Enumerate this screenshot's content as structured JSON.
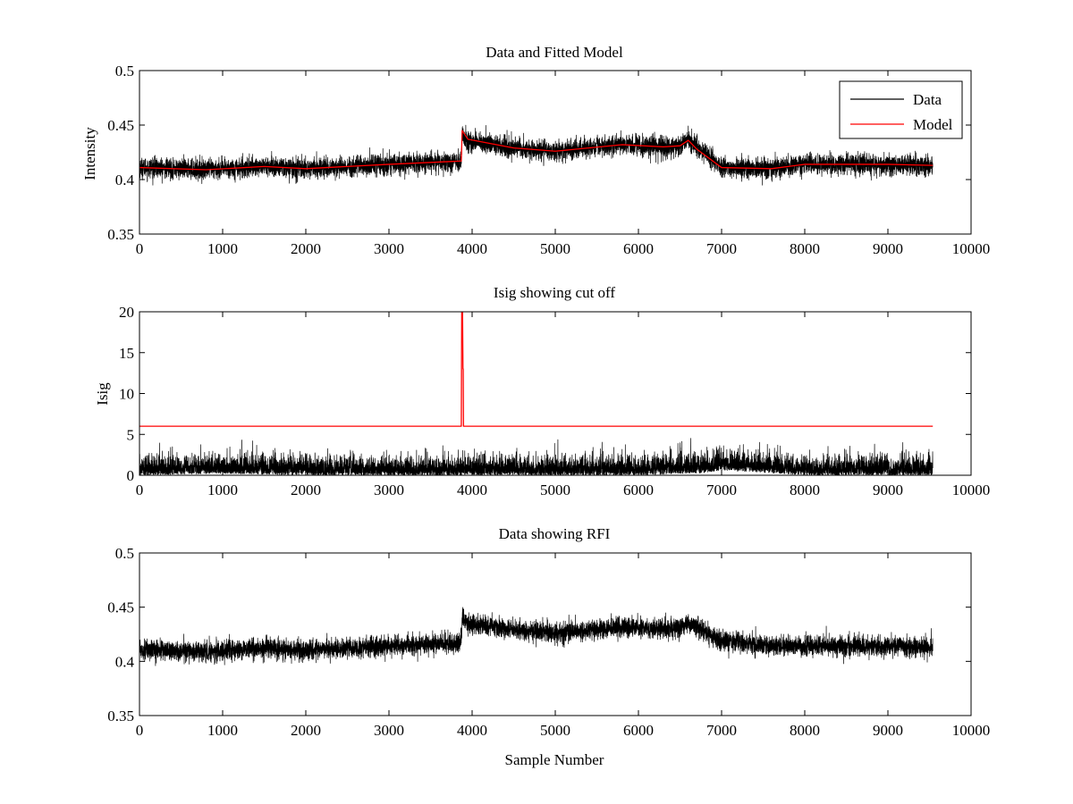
{
  "chart_data": [
    {
      "type": "line",
      "title": "Data and Fitted Model",
      "xlabel": "",
      "ylabel": "Intensity",
      "xlim": [
        0,
        10000
      ],
      "ylim": [
        0.35,
        0.5
      ],
      "xticks": [
        "0",
        "1000",
        "2000",
        "3000",
        "4000",
        "5000",
        "6000",
        "7000",
        "8000",
        "9000",
        "10000"
      ],
      "yticks": [
        "0.35",
        "0.4",
        "0.45",
        "0.5"
      ],
      "legend": {
        "placement": "top-right",
        "entries": [
          "Data",
          "Model"
        ]
      },
      "series": [
        {
          "name": "Data",
          "color": "#000000",
          "noisy": true,
          "noise_amplitude": 0.0045,
          "x": [
            0,
            800,
            1500,
            2000,
            3000,
            3870,
            3880,
            3950,
            4500,
            5000,
            5800,
            6300,
            6500,
            6600,
            6700,
            7000,
            7600,
            8000,
            9000,
            9540
          ],
          "y": [
            0.411,
            0.409,
            0.412,
            0.41,
            0.414,
            0.417,
            0.441,
            0.435,
            0.429,
            0.426,
            0.432,
            0.43,
            0.431,
            0.436,
            0.431,
            0.411,
            0.41,
            0.414,
            0.414,
            0.413
          ]
        },
        {
          "name": "Model",
          "color": "#ff0000",
          "noisy": false,
          "x": [
            0,
            800,
            1500,
            2000,
            3000,
            3870,
            3880,
            3950,
            4500,
            5000,
            5800,
            6300,
            6500,
            6600,
            6700,
            7000,
            7600,
            8000,
            9000,
            9540
          ],
          "y": [
            0.411,
            0.409,
            0.412,
            0.41,
            0.414,
            0.417,
            0.445,
            0.437,
            0.429,
            0.426,
            0.432,
            0.43,
            0.431,
            0.436,
            0.428,
            0.411,
            0.41,
            0.414,
            0.414,
            0.413
          ]
        }
      ]
    },
    {
      "type": "line",
      "title": "Isig showing cut off",
      "xlabel": "",
      "ylabel": "Isig",
      "xlim": [
        0,
        10000
      ],
      "ylim": [
        0,
        20
      ],
      "xticks": [
        "0",
        "1000",
        "2000",
        "3000",
        "4000",
        "5000",
        "6000",
        "7000",
        "8000",
        "9000",
        "10000"
      ],
      "yticks": [
        "0",
        "5",
        "10",
        "15",
        "20"
      ],
      "series": [
        {
          "name": "Isig",
          "color": "#000000",
          "noisy": true,
          "noise_type": "abs",
          "noise_amplitude": 1.1,
          "x": [
            0,
            1000,
            2000,
            3000,
            4000,
            5000,
            6000,
            6800,
            7000,
            7400,
            8000,
            9000,
            9540
          ],
          "y": [
            0,
            0.2,
            0,
            0,
            0,
            0,
            0,
            0.3,
            0.6,
            0.4,
            0,
            0,
            0
          ]
        },
        {
          "name": "Cut off",
          "color": "#ff0000",
          "noisy": false,
          "x": [
            0,
            3870,
            3875,
            3885,
            3890,
            3893,
            3896,
            3900,
            9540
          ],
          "y": [
            6,
            6,
            20,
            20,
            13,
            13,
            6,
            6,
            6
          ]
        }
      ]
    },
    {
      "type": "line",
      "title": "Data showing RFI",
      "xlabel": "Sample Number",
      "ylabel": "",
      "xlim": [
        0,
        10000
      ],
      "ylim": [
        0.35,
        0.5
      ],
      "xticks": [
        "0",
        "1000",
        "2000",
        "3000",
        "4000",
        "5000",
        "6000",
        "7000",
        "8000",
        "9000",
        "10000"
      ],
      "yticks": [
        "0.35",
        "0.4",
        "0.45",
        "0.5"
      ],
      "series": [
        {
          "name": "Data",
          "color": "#000000",
          "noisy": true,
          "noise_amplitude": 0.0045,
          "x": [
            0,
            800,
            1500,
            2000,
            3000,
            3870,
            3880,
            3950,
            4500,
            5000,
            5800,
            6300,
            6500,
            6600,
            6700,
            7000,
            7600,
            8000,
            9000,
            9540
          ],
          "y": [
            0.411,
            0.409,
            0.412,
            0.41,
            0.414,
            0.417,
            0.441,
            0.435,
            0.429,
            0.426,
            0.432,
            0.43,
            0.431,
            0.436,
            0.431,
            0.419,
            0.414,
            0.414,
            0.414,
            0.413
          ]
        }
      ]
    }
  ]
}
